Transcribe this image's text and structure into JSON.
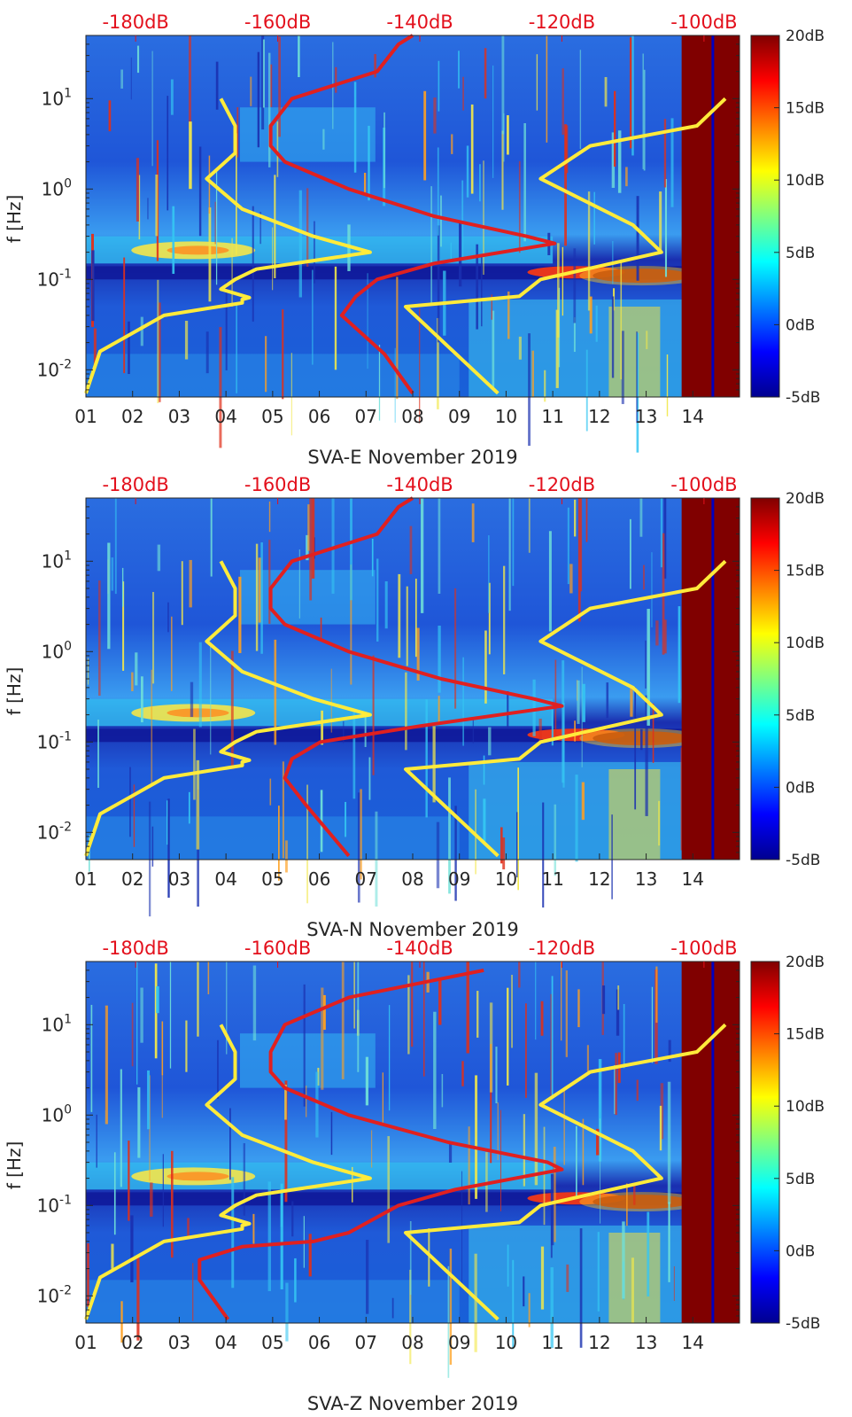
{
  "colors": {
    "top_axis_text": "#e3101c",
    "noise_model_line": "#ffeb3b",
    "median_psd_line": "#e02020",
    "axis_text": "#262626"
  },
  "colorbar": {
    "colormap": "jet",
    "range_dB": [
      -5,
      20
    ],
    "tick_labels": [
      "20dB",
      "15dB",
      "10dB",
      "5dB",
      "0dB",
      "-5dB"
    ],
    "tick_values": [
      20,
      15,
      10,
      5,
      0,
      -5
    ]
  },
  "chart_data": [
    {
      "type": "heatmap",
      "xlabel": "SVA-E November 2019",
      "ylabel": "f [Hz]",
      "yscale": "log",
      "x_ticks": [
        "01",
        "02",
        "03",
        "04",
        "05",
        "06",
        "07",
        "08",
        "09",
        "10",
        "11",
        "12",
        "13",
        "14"
      ],
      "y_ticks": [
        "10^-2",
        "10^-1",
        "10^0",
        "10^1"
      ],
      "top_axis_ticks": [
        "-180dB",
        "-160dB",
        "-140dB",
        "-120dB",
        "-100dB"
      ],
      "xlim_days": [
        1,
        15
      ],
      "ylim_hz": [
        0.005,
        50
      ],
      "top_axis_range_dB": [
        -187,
        -95
      ],
      "lines": [
        {
          "color": "yellow",
          "points": [
            [
              0.0055,
              -187
            ],
            [
              0.016,
              -185
            ],
            [
              0.04,
              -176
            ],
            [
              0.055,
              -165
            ],
            [
              0.06,
              -165
            ],
            [
              0.063,
              -164
            ],
            [
              0.078,
              -168
            ],
            [
              0.1,
              -166
            ],
            [
              0.13,
              -163
            ],
            [
              0.2,
              -147
            ],
            [
              0.3,
              -155
            ],
            [
              0.6,
              -165
            ],
            [
              1.3,
              -170
            ],
            [
              2.5,
              -166
            ],
            [
              5,
              -166
            ],
            [
              10,
              -168
            ]
          ]
        },
        {
          "color": "yellow",
          "points": [
            [
              0.0055,
              -129
            ],
            [
              0.05,
              -142
            ],
            [
              0.065,
              -126
            ],
            [
              0.1,
              -123
            ],
            [
              0.2,
              -106
            ],
            [
              0.4,
              -110
            ],
            [
              1.3,
              -123
            ],
            [
              3,
              -116
            ],
            [
              5,
              -101
            ],
            [
              10,
              -97
            ]
          ]
        },
        {
          "color": "red",
          "points": [
            [
              0.0055,
              -141
            ],
            [
              0.015,
              -145
            ],
            [
              0.04,
              -151
            ],
            [
              0.065,
              -149
            ],
            [
              0.1,
              -146
            ],
            [
              0.15,
              -138
            ],
            [
              0.25,
              -121
            ],
            [
              0.3,
              -125
            ],
            [
              0.5,
              -138
            ],
            [
              1,
              -150
            ],
            [
              2,
              -159
            ],
            [
              3,
              -161
            ],
            [
              5,
              -161
            ],
            [
              10,
              -158
            ],
            [
              20,
              -146
            ],
            [
              40,
              -143
            ],
            [
              50,
              -141
            ]
          ]
        }
      ]
    },
    {
      "type": "heatmap",
      "xlabel": "SVA-N November 2019",
      "ylabel": "f [Hz]",
      "yscale": "log",
      "x_ticks": [
        "01",
        "02",
        "03",
        "04",
        "05",
        "06",
        "07",
        "08",
        "09",
        "10",
        "11",
        "12",
        "13",
        "14"
      ],
      "y_ticks": [
        "10^-2",
        "10^-1",
        "10^0",
        "10^1"
      ],
      "top_axis_ticks": [
        "-180dB",
        "-160dB",
        "-140dB",
        "-120dB",
        "-100dB"
      ],
      "xlim_days": [
        1,
        15
      ],
      "ylim_hz": [
        0.005,
        50
      ],
      "top_axis_range_dB": [
        -187,
        -95
      ],
      "lines": [
        {
          "color": "yellow",
          "points": [
            [
              0.0055,
              -187
            ],
            [
              0.016,
              -185
            ],
            [
              0.04,
              -176
            ],
            [
              0.055,
              -165
            ],
            [
              0.06,
              -165
            ],
            [
              0.063,
              -164
            ],
            [
              0.078,
              -168
            ],
            [
              0.1,
              -166
            ],
            [
              0.13,
              -163
            ],
            [
              0.2,
              -147
            ],
            [
              0.3,
              -155
            ],
            [
              0.6,
              -165
            ],
            [
              1.3,
              -170
            ],
            [
              2.5,
              -166
            ],
            [
              5,
              -166
            ],
            [
              10,
              -168
            ]
          ]
        },
        {
          "color": "yellow",
          "points": [
            [
              0.0055,
              -129
            ],
            [
              0.05,
              -142
            ],
            [
              0.065,
              -126
            ],
            [
              0.1,
              -123
            ],
            [
              0.2,
              -106
            ],
            [
              0.4,
              -110
            ],
            [
              1.3,
              -123
            ],
            [
              3,
              -116
            ],
            [
              5,
              -101
            ],
            [
              10,
              -97
            ]
          ]
        },
        {
          "color": "red",
          "points": [
            [
              0.0055,
              -150
            ],
            [
              0.02,
              -156
            ],
            [
              0.04,
              -159
            ],
            [
              0.065,
              -158
            ],
            [
              0.1,
              -154
            ],
            [
              0.15,
              -140
            ],
            [
              0.25,
              -120
            ],
            [
              0.3,
              -124
            ],
            [
              0.5,
              -137
            ],
            [
              1,
              -150
            ],
            [
              2,
              -159
            ],
            [
              3,
              -161
            ],
            [
              5,
              -161
            ],
            [
              10,
              -158
            ],
            [
              20,
              -146
            ],
            [
              40,
              -143
            ],
            [
              50,
              -141
            ]
          ]
        }
      ]
    },
    {
      "type": "heatmap",
      "xlabel": "SVA-Z November 2019",
      "ylabel": "f [Hz]",
      "yscale": "log",
      "x_ticks": [
        "01",
        "02",
        "03",
        "04",
        "05",
        "06",
        "07",
        "08",
        "09",
        "10",
        "11",
        "12",
        "13",
        "14"
      ],
      "y_ticks": [
        "10^-2",
        "10^-1",
        "10^0",
        "10^1"
      ],
      "top_axis_ticks": [
        "-180dB",
        "-160dB",
        "-140dB",
        "-120dB",
        "-100dB"
      ],
      "xlim_days": [
        1,
        15
      ],
      "ylim_hz": [
        0.005,
        50
      ],
      "top_axis_range_dB": [
        -187,
        -95
      ],
      "lines": [
        {
          "color": "yellow",
          "points": [
            [
              0.0055,
              -187
            ],
            [
              0.016,
              -185
            ],
            [
              0.04,
              -176
            ],
            [
              0.055,
              -165
            ],
            [
              0.06,
              -165
            ],
            [
              0.063,
              -164
            ],
            [
              0.078,
              -168
            ],
            [
              0.1,
              -166
            ],
            [
              0.13,
              -163
            ],
            [
              0.2,
              -147
            ],
            [
              0.3,
              -155
            ],
            [
              0.6,
              -165
            ],
            [
              1.3,
              -170
            ],
            [
              2.5,
              -166
            ],
            [
              5,
              -166
            ],
            [
              10,
              -168
            ]
          ]
        },
        {
          "color": "yellow",
          "points": [
            [
              0.0055,
              -129
            ],
            [
              0.05,
              -142
            ],
            [
              0.065,
              -126
            ],
            [
              0.1,
              -123
            ],
            [
              0.2,
              -106
            ],
            [
              0.4,
              -110
            ],
            [
              1.3,
              -123
            ],
            [
              3,
              -116
            ],
            [
              5,
              -101
            ],
            [
              10,
              -97
            ]
          ]
        },
        {
          "color": "red",
          "points": [
            [
              0.0055,
              -167
            ],
            [
              0.015,
              -171
            ],
            [
              0.025,
              -171
            ],
            [
              0.035,
              -165
            ],
            [
              0.04,
              -155
            ],
            [
              0.05,
              -150
            ],
            [
              0.1,
              -143
            ],
            [
              0.15,
              -135
            ],
            [
              0.25,
              -120
            ],
            [
              0.3,
              -122
            ],
            [
              0.5,
              -136
            ],
            [
              1,
              -150
            ],
            [
              2,
              -159
            ],
            [
              3,
              -161
            ],
            [
              5,
              -161
            ],
            [
              10,
              -159
            ],
            [
              20,
              -150
            ],
            [
              40,
              -131
            ]
          ]
        }
      ]
    }
  ]
}
